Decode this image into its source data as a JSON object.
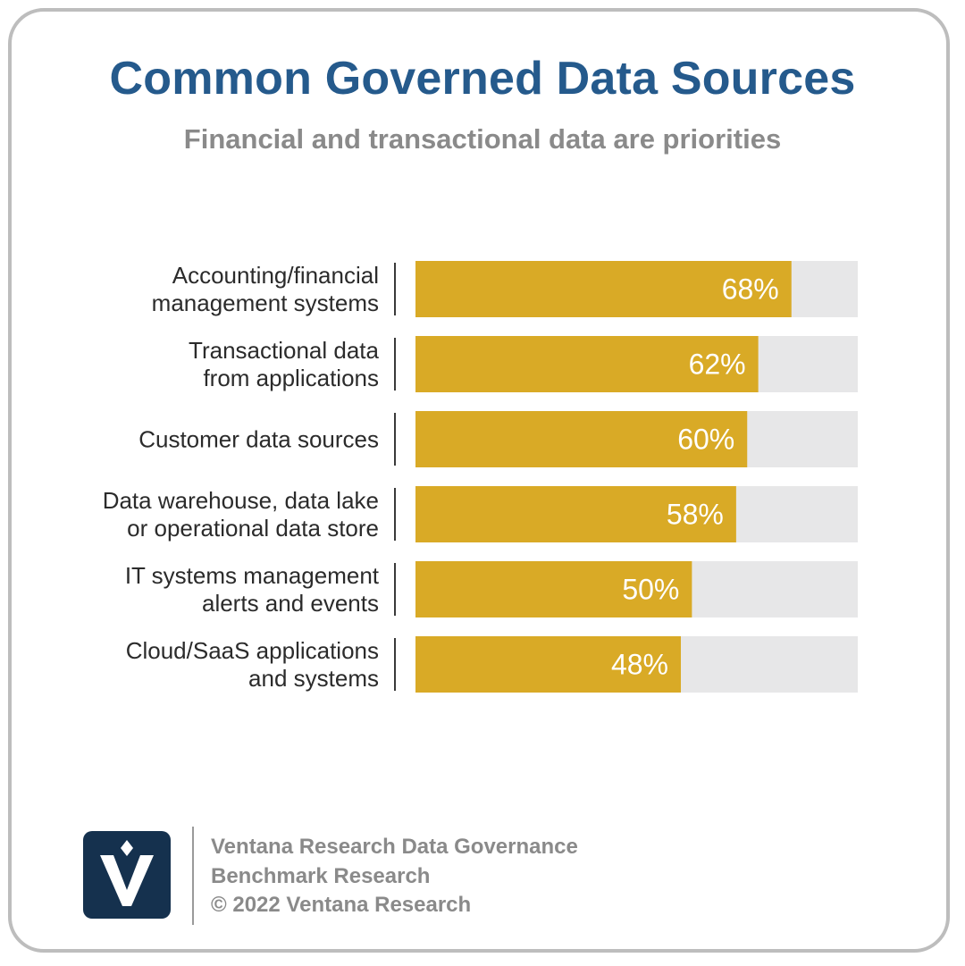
{
  "header": {
    "title": "Common Governed Data Sources",
    "subtitle": "Financial and transactional data are priorities"
  },
  "chart_data": {
    "type": "bar",
    "orientation": "horizontal",
    "categories": [
      [
        "Accounting/financial",
        "management systems"
      ],
      [
        "Transactional data",
        "from applications"
      ],
      [
        "Customer data sources"
      ],
      [
        "Data warehouse, data lake",
        "or operational data store"
      ],
      [
        "IT systems management",
        "alerts and events"
      ],
      [
        "Cloud/SaaS applications",
        "and systems"
      ]
    ],
    "values": [
      68,
      62,
      60,
      58,
      50,
      48
    ],
    "value_labels": [
      "68%",
      "62%",
      "60%",
      "58%",
      "50%",
      "48%"
    ],
    "xlim": [
      0,
      80
    ],
    "grid": false,
    "colors": {
      "bar": "#d9aa26",
      "track": "#e7e7e8",
      "divider": "#3a3a3a"
    }
  },
  "footer": {
    "logo_icon": "ventana-v-logo-icon",
    "logo_color": "#15314e",
    "lines": [
      "Ventana Research Data Governance",
      "Benchmark Research",
      "© 2022 Ventana Research"
    ]
  }
}
